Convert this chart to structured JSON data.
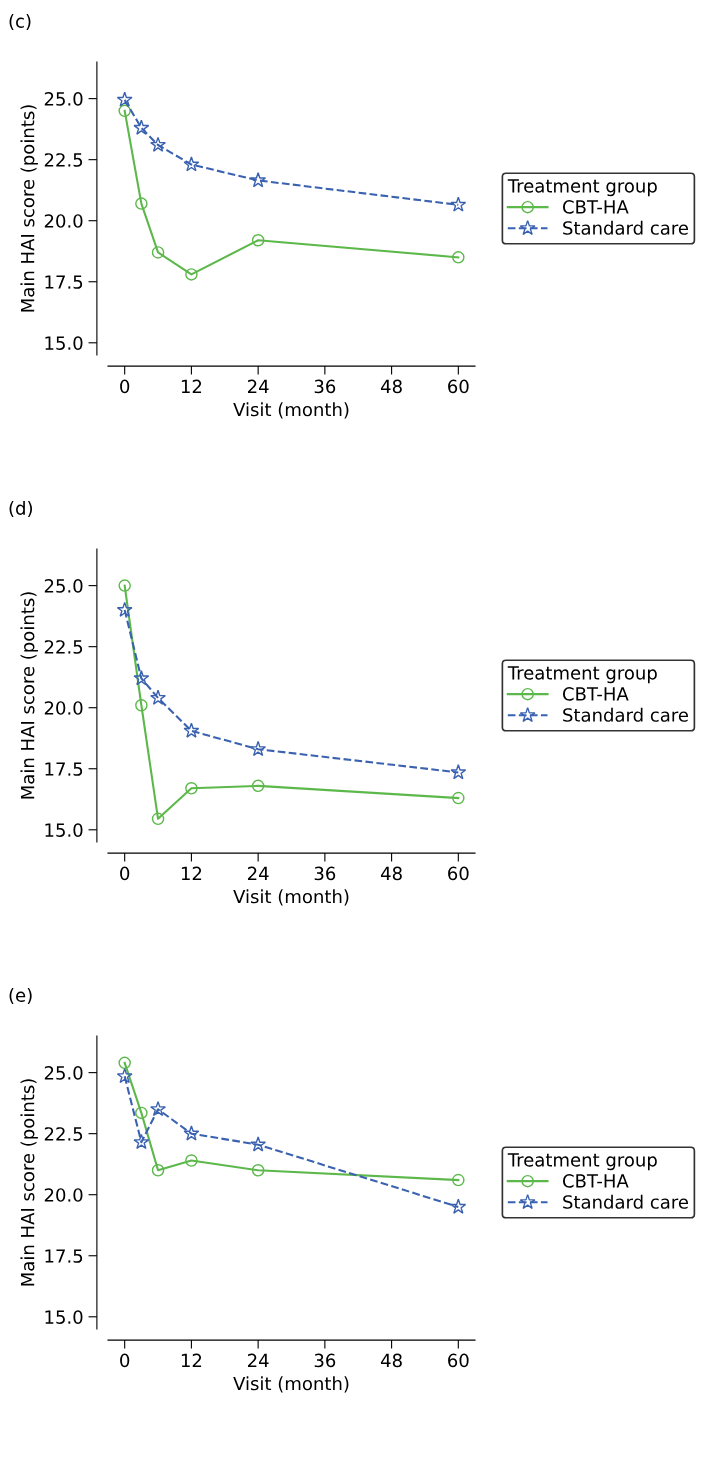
{
  "chart_data": [
    {
      "type": "line",
      "title": "(c)",
      "xlabel": "Visit (month)",
      "ylabel": "Main HAI score (points)",
      "legend_title": "Treatment group",
      "legend": "right",
      "grid": false,
      "xlim": [
        -3,
        63
      ],
      "xticks": [
        0,
        12,
        24,
        36,
        48,
        60
      ],
      "ylim": [
        14.5,
        26.5
      ],
      "yticks": [
        {
          "value": 15,
          "label": "15.0"
        },
        {
          "value": 17.5,
          "label": "17.5"
        },
        {
          "value": 20,
          "label": "20.0"
        },
        {
          "value": 22.5,
          "label": "22.5"
        },
        {
          "value": 25,
          "label": "25.0"
        }
      ],
      "x": [
        0,
        3,
        6,
        12,
        24,
        60
      ],
      "series": [
        {
          "name": "CBT-HA",
          "color": "#5cb84a",
          "marker": "circle",
          "line_style": "solid",
          "values": [
            24.5,
            20.7,
            18.7,
            17.8,
            19.2,
            18.5
          ]
        },
        {
          "name": "Standard care",
          "color": "#3a62b0",
          "marker": "star",
          "line_style": "dashed",
          "values": [
            24.95,
            23.8,
            23.1,
            22.3,
            21.65,
            20.65
          ]
        }
      ]
    },
    {
      "type": "line",
      "title": "(d)",
      "xlabel": "Visit (month)",
      "ylabel": "Main HAI score (points)",
      "legend_title": "Treatment group",
      "legend": "right",
      "grid": false,
      "xlim": [
        -3,
        63
      ],
      "xticks": [
        0,
        12,
        24,
        36,
        48,
        60
      ],
      "ylim": [
        14.5,
        26.5
      ],
      "yticks": [
        {
          "value": 15,
          "label": "15.0"
        },
        {
          "value": 17.5,
          "label": "17.5"
        },
        {
          "value": 20,
          "label": "20.0"
        },
        {
          "value": 22.5,
          "label": "22.5"
        },
        {
          "value": 25,
          "label": "25.0"
        }
      ],
      "x": [
        0,
        3,
        6,
        12,
        24,
        60
      ],
      "series": [
        {
          "name": "CBT-HA",
          "color": "#5cb84a",
          "marker": "circle",
          "line_style": "solid",
          "values": [
            25.0,
            20.1,
            15.45,
            16.7,
            16.8,
            16.3
          ]
        },
        {
          "name": "Standard care",
          "color": "#3a62b0",
          "marker": "star",
          "line_style": "dashed",
          "values": [
            24.0,
            21.2,
            20.4,
            19.05,
            18.3,
            17.35
          ]
        }
      ]
    },
    {
      "type": "line",
      "title": "(e)",
      "xlabel": "Visit (month)",
      "ylabel": "Main HAI score (points)",
      "legend_title": "Treatment group",
      "legend": "right",
      "grid": false,
      "xlim": [
        -3,
        63
      ],
      "xticks": [
        0,
        12,
        24,
        36,
        48,
        60
      ],
      "ylim": [
        14.5,
        26.5
      ],
      "yticks": [
        {
          "value": 15,
          "label": "15.0"
        },
        {
          "value": 17.5,
          "label": "17.5"
        },
        {
          "value": 20,
          "label": "20.0"
        },
        {
          "value": 22.5,
          "label": "22.5"
        },
        {
          "value": 25,
          "label": "25.0"
        }
      ],
      "x": [
        0,
        3,
        6,
        12,
        24,
        60
      ],
      "series": [
        {
          "name": "CBT-HA",
          "color": "#5cb84a",
          "marker": "circle",
          "line_style": "solid",
          "values": [
            25.4,
            23.35,
            21.0,
            21.4,
            21.0,
            20.6
          ]
        },
        {
          "name": "Standard care",
          "color": "#3a62b0",
          "marker": "star",
          "line_style": "dashed",
          "values": [
            24.85,
            22.15,
            23.5,
            22.5,
            22.05,
            19.5
          ]
        }
      ]
    }
  ]
}
